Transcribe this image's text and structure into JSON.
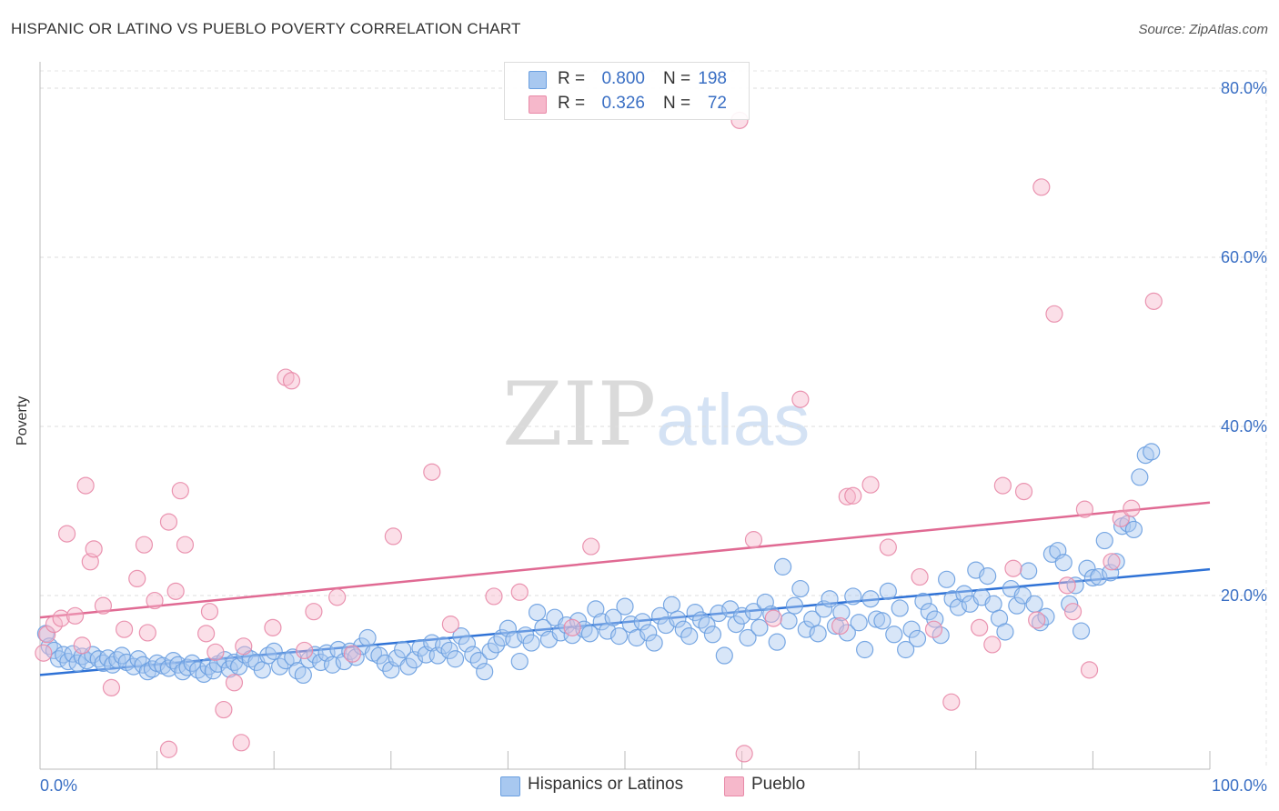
{
  "header": {
    "title": "HISPANIC OR LATINO VS PUEBLO POVERTY CORRELATION CHART",
    "source": "Source: ZipAtlas.com"
  },
  "watermark": {
    "part1": "ZIP",
    "part2": "atlas"
  },
  "legend": {
    "rows": [
      {
        "r_label": "R =",
        "r_value": "0.800",
        "n_label": "N =",
        "n_value": "198",
        "color": "#a8c8f0"
      },
      {
        "r_label": "R =",
        "r_value": "0.326",
        "n_label": "N =",
        "n_value": "72",
        "color": "#f6b8cb"
      }
    ]
  },
  "bottom_legend": [
    {
      "label": "Hispanics or Latinos",
      "color": "#a8c8f0"
    },
    {
      "label": "Pueblo",
      "color": "#f6b8cb"
    }
  ],
  "chart_data": {
    "type": "scatter",
    "title": "HISPANIC OR LATINO VS PUEBLO POVERTY CORRELATION CHART",
    "xlabel": "",
    "ylabel": "Poverty",
    "xlim": [
      0,
      100
    ],
    "ylim": [
      0,
      80
    ],
    "x_tick_labels": [
      "0.0%",
      "100.0%"
    ],
    "y_tick_labels": [
      "20.0%",
      "40.0%",
      "60.0%",
      "80.0%"
    ],
    "y_tick_values": [
      20,
      40,
      60,
      80
    ],
    "grid": true,
    "legend_position": "top-center",
    "series": [
      {
        "name": "Hispanics or Latinos",
        "color": "#6a9fe0",
        "fill": "#a8c8f0",
        "trend": {
          "x": [
            0,
            100
          ],
          "y": [
            10.6,
            23.1
          ]
        },
        "points": [
          [
            0.5,
            15.5
          ],
          [
            0.8,
            14.0
          ],
          [
            1.2,
            13.5
          ],
          [
            1.6,
            12.5
          ],
          [
            2.0,
            13.0
          ],
          [
            2.4,
            12.2
          ],
          [
            2.8,
            13.1
          ],
          [
            3.2,
            12.0
          ],
          [
            3.6,
            12.8
          ],
          [
            4.0,
            12.3
          ],
          [
            4.5,
            13.0
          ],
          [
            5.0,
            12.5
          ],
          [
            5.4,
            12.0
          ],
          [
            5.8,
            12.6
          ],
          [
            6.2,
            11.8
          ],
          [
            6.6,
            12.4
          ],
          [
            7.0,
            12.9
          ],
          [
            7.4,
            12.1
          ],
          [
            8.0,
            11.6
          ],
          [
            8.4,
            12.5
          ],
          [
            8.8,
            11.8
          ],
          [
            9.2,
            11.0
          ],
          [
            9.6,
            11.3
          ],
          [
            10.0,
            12.0
          ],
          [
            10.5,
            11.7
          ],
          [
            11.0,
            11.4
          ],
          [
            11.4,
            12.3
          ],
          [
            11.8,
            11.8
          ],
          [
            12.2,
            11.0
          ],
          [
            12.6,
            11.5
          ],
          [
            13.0,
            12.0
          ],
          [
            13.5,
            11.2
          ],
          [
            14.0,
            10.7
          ],
          [
            14.4,
            11.6
          ],
          [
            14.8,
            11.1
          ],
          [
            15.2,
            11.9
          ],
          [
            15.8,
            12.4
          ],
          [
            16.2,
            11.3
          ],
          [
            16.6,
            12.1
          ],
          [
            17.0,
            11.6
          ],
          [
            17.5,
            13.0
          ],
          [
            18.0,
            12.5
          ],
          [
            18.5,
            12.1
          ],
          [
            19.0,
            11.2
          ],
          [
            19.5,
            12.9
          ],
          [
            20.0,
            13.4
          ],
          [
            20.5,
            11.6
          ],
          [
            21.0,
            12.3
          ],
          [
            21.6,
            12.7
          ],
          [
            22.0,
            11.1
          ],
          [
            22.5,
            10.6
          ],
          [
            23.0,
            12.4
          ],
          [
            23.5,
            13.0
          ],
          [
            24.0,
            12.1
          ],
          [
            24.5,
            13.2
          ],
          [
            25.0,
            11.8
          ],
          [
            25.5,
            13.6
          ],
          [
            26.0,
            12.2
          ],
          [
            26.5,
            13.4
          ],
          [
            27.0,
            12.7
          ],
          [
            27.5,
            14.0
          ],
          [
            28.0,
            15.0
          ],
          [
            28.5,
            13.2
          ],
          [
            29.0,
            12.9
          ],
          [
            29.5,
            12.0
          ],
          [
            30.0,
            11.2
          ],
          [
            30.5,
            12.6
          ],
          [
            31.0,
            13.6
          ],
          [
            31.5,
            11.6
          ],
          [
            32.0,
            12.4
          ],
          [
            32.5,
            13.8
          ],
          [
            33.0,
            13.0
          ],
          [
            33.5,
            14.4
          ],
          [
            34.0,
            12.9
          ],
          [
            34.5,
            14.1
          ],
          [
            35.0,
            13.5
          ],
          [
            35.5,
            12.5
          ],
          [
            36.0,
            15.2
          ],
          [
            36.5,
            14.3
          ],
          [
            37.0,
            13.0
          ],
          [
            37.5,
            12.3
          ],
          [
            38.0,
            11.0
          ],
          [
            38.5,
            13.4
          ],
          [
            39.0,
            14.2
          ],
          [
            39.5,
            15.0
          ],
          [
            40.0,
            16.1
          ],
          [
            40.5,
            14.8
          ],
          [
            41.0,
            12.2
          ],
          [
            41.5,
            15.3
          ],
          [
            42.0,
            14.4
          ],
          [
            42.5,
            18.0
          ],
          [
            43.0,
            16.2
          ],
          [
            43.5,
            14.8
          ],
          [
            44.0,
            17.4
          ],
          [
            44.5,
            15.6
          ],
          [
            45.0,
            16.5
          ],
          [
            45.5,
            15.3
          ],
          [
            46.0,
            17.0
          ],
          [
            46.5,
            16.0
          ],
          [
            47.0,
            15.5
          ],
          [
            47.5,
            18.4
          ],
          [
            48.0,
            16.9
          ],
          [
            48.5,
            15.8
          ],
          [
            49.0,
            17.4
          ],
          [
            49.5,
            15.2
          ],
          [
            50.0,
            18.7
          ],
          [
            50.5,
            16.6
          ],
          [
            51.0,
            15.0
          ],
          [
            51.5,
            16.9
          ],
          [
            52.0,
            15.6
          ],
          [
            52.5,
            14.4
          ],
          [
            53.0,
            17.6
          ],
          [
            53.5,
            16.5
          ],
          [
            54.0,
            18.9
          ],
          [
            54.5,
            17.2
          ],
          [
            55.0,
            16.0
          ],
          [
            55.5,
            15.2
          ],
          [
            56.0,
            18.0
          ],
          [
            56.5,
            17.1
          ],
          [
            57.0,
            16.5
          ],
          [
            57.5,
            15.4
          ],
          [
            58.0,
            17.9
          ],
          [
            58.5,
            12.9
          ],
          [
            59.0,
            18.4
          ],
          [
            59.5,
            16.6
          ],
          [
            60.0,
            17.6
          ],
          [
            60.5,
            15.0
          ],
          [
            61.0,
            18.1
          ],
          [
            61.5,
            16.2
          ],
          [
            62.0,
            19.2
          ],
          [
            62.5,
            17.8
          ],
          [
            63.0,
            14.5
          ],
          [
            63.5,
            23.4
          ],
          [
            64.0,
            17.0
          ],
          [
            64.5,
            18.8
          ],
          [
            65.0,
            20.8
          ],
          [
            65.5,
            16.0
          ],
          [
            66.0,
            17.2
          ],
          [
            66.5,
            15.5
          ],
          [
            67.0,
            18.4
          ],
          [
            67.5,
            19.6
          ],
          [
            68.0,
            16.4
          ],
          [
            68.5,
            18.0
          ],
          [
            69.0,
            15.6
          ],
          [
            69.5,
            19.9
          ],
          [
            70.0,
            16.8
          ],
          [
            70.5,
            13.6
          ],
          [
            71.0,
            19.6
          ],
          [
            71.5,
            17.2
          ],
          [
            72.0,
            17.0
          ],
          [
            72.5,
            20.5
          ],
          [
            73.0,
            15.4
          ],
          [
            73.5,
            18.5
          ],
          [
            74.0,
            13.6
          ],
          [
            74.5,
            16.0
          ],
          [
            75.0,
            14.9
          ],
          [
            75.5,
            19.3
          ],
          [
            76.0,
            18.1
          ],
          [
            76.5,
            17.2
          ],
          [
            77.0,
            15.3
          ],
          [
            77.5,
            21.9
          ],
          [
            78.0,
            19.6
          ],
          [
            78.5,
            18.6
          ],
          [
            79.0,
            20.2
          ],
          [
            79.5,
            19.0
          ],
          [
            80.0,
            23.0
          ],
          [
            80.5,
            19.8
          ],
          [
            81.0,
            22.3
          ],
          [
            81.5,
            19.0
          ],
          [
            82.0,
            17.3
          ],
          [
            82.5,
            15.7
          ],
          [
            83.0,
            20.8
          ],
          [
            83.5,
            18.8
          ],
          [
            84.0,
            20.0
          ],
          [
            84.5,
            22.9
          ],
          [
            85.0,
            19.0
          ],
          [
            85.5,
            16.8
          ],
          [
            86.0,
            17.5
          ],
          [
            86.5,
            24.9
          ],
          [
            87.0,
            25.3
          ],
          [
            87.5,
            23.9
          ],
          [
            88.0,
            19.0
          ],
          [
            88.5,
            21.2
          ],
          [
            89.0,
            15.8
          ],
          [
            89.5,
            23.2
          ],
          [
            90.0,
            22.1
          ],
          [
            90.5,
            22.2
          ],
          [
            91.0,
            26.5
          ],
          [
            91.5,
            22.7
          ],
          [
            92.0,
            24.0
          ],
          [
            92.5,
            28.2
          ],
          [
            93.0,
            28.5
          ],
          [
            93.5,
            27.8
          ],
          [
            94.0,
            34.0
          ],
          [
            94.5,
            36.6
          ],
          [
            95.0,
            37.0
          ]
        ]
      },
      {
        "name": "Pueblo",
        "color": "#e88aa8",
        "fill": "#f6b8cb",
        "trend": {
          "x": [
            0,
            100
          ],
          "y": [
            17.4,
            31.0
          ]
        },
        "points": [
          [
            0.3,
            13.2
          ],
          [
            0.6,
            15.4
          ],
          [
            1.2,
            16.6
          ],
          [
            1.8,
            17.3
          ],
          [
            2.3,
            27.3
          ],
          [
            3.0,
            17.6
          ],
          [
            3.6,
            14.1
          ],
          [
            3.9,
            33.0
          ],
          [
            4.3,
            24.0
          ],
          [
            4.6,
            25.5
          ],
          [
            5.4,
            18.8
          ],
          [
            6.1,
            9.1
          ],
          [
            7.2,
            16.0
          ],
          [
            8.3,
            22.0
          ],
          [
            8.9,
            26.0
          ],
          [
            9.2,
            15.6
          ],
          [
            9.8,
            19.4
          ],
          [
            11.0,
            1.8
          ],
          [
            11.0,
            28.7
          ],
          [
            11.6,
            20.5
          ],
          [
            12.0,
            32.4
          ],
          [
            12.4,
            26.0
          ],
          [
            14.2,
            15.5
          ],
          [
            14.5,
            18.1
          ],
          [
            15.0,
            13.3
          ],
          [
            15.7,
            6.5
          ],
          [
            16.6,
            9.7
          ],
          [
            17.2,
            2.6
          ],
          [
            17.4,
            14.0
          ],
          [
            19.9,
            16.2
          ],
          [
            21.0,
            45.8
          ],
          [
            21.5,
            45.4
          ],
          [
            22.6,
            13.5
          ],
          [
            23.4,
            18.1
          ],
          [
            25.4,
            19.8
          ],
          [
            26.7,
            13.1
          ],
          [
            30.2,
            27.0
          ],
          [
            33.5,
            34.6
          ],
          [
            35.1,
            16.6
          ],
          [
            38.8,
            19.9
          ],
          [
            41.0,
            20.4
          ],
          [
            45.5,
            16.2
          ],
          [
            47.1,
            25.8
          ],
          [
            60.2,
            1.3
          ],
          [
            61.0,
            26.6
          ],
          [
            62.7,
            17.3
          ],
          [
            65.0,
            43.2
          ],
          [
            68.4,
            16.4
          ],
          [
            69.0,
            31.7
          ],
          [
            69.5,
            31.8
          ],
          [
            71.0,
            33.1
          ],
          [
            72.5,
            25.7
          ],
          [
            75.2,
            22.2
          ],
          [
            76.4,
            16.0
          ],
          [
            77.9,
            7.4
          ],
          [
            80.3,
            16.2
          ],
          [
            81.4,
            14.2
          ],
          [
            82.3,
            33.0
          ],
          [
            83.2,
            23.2
          ],
          [
            84.1,
            32.3
          ],
          [
            85.6,
            68.3
          ],
          [
            85.2,
            17.1
          ],
          [
            86.7,
            53.3
          ],
          [
            87.8,
            21.2
          ],
          [
            88.3,
            18.1
          ],
          [
            89.3,
            30.2
          ],
          [
            89.7,
            11.2
          ],
          [
            91.6,
            24.0
          ],
          [
            92.4,
            29.1
          ],
          [
            93.3,
            30.3
          ],
          [
            95.2,
            54.8
          ],
          [
            59.8,
            76.2
          ]
        ]
      }
    ]
  }
}
